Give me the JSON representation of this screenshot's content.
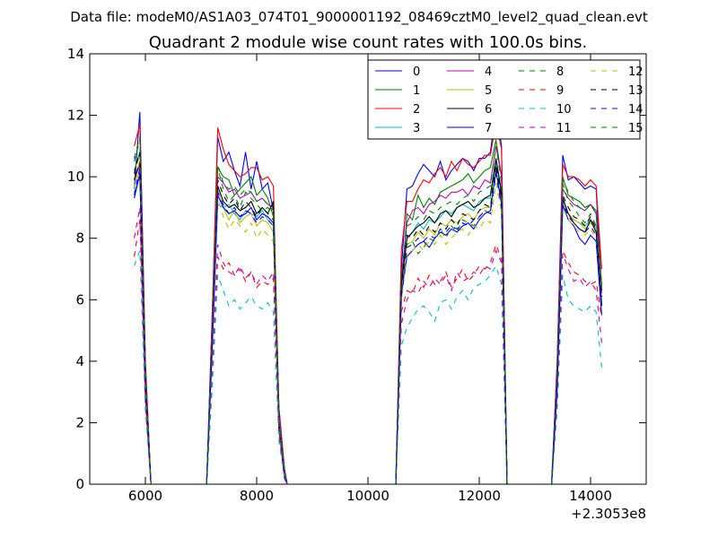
{
  "header": {
    "data_file": "Data file: modeM0/AS1A03_074T01_9000001192_08469cztM0_level2_quad_clean.evt"
  },
  "chart_data": {
    "type": "line",
    "title": "Quadrant 2 module wise count rates with 100.0s bins.",
    "xlabel": "",
    "ylabel": "",
    "xlim": [
      5000,
      15000
    ],
    "ylim": [
      0,
      14
    ],
    "x_offset_label": "+2.3053e8",
    "xticks": [
      6000,
      8000,
      10000,
      12000,
      14000
    ],
    "yticks": [
      0,
      2,
      4,
      6,
      8,
      10,
      12,
      14
    ],
    "grid": false,
    "legend": {
      "placement": "top-right",
      "columns": 4
    },
    "segments": [
      {
        "x": [
          5800,
          5900,
          6000,
          6100,
          6150
        ]
      },
      {
        "x": [
          7100,
          7200,
          7300,
          7400,
          7500,
          7600,
          7700,
          7800,
          7900,
          8000,
          8100,
          8200,
          8300,
          8400,
          8500,
          8550
        ]
      },
      {
        "x": [
          10500,
          10600,
          10700,
          10800,
          10900,
          11000,
          11100,
          11200,
          11300,
          11400,
          11500,
          11600,
          11700,
          11800,
          11900,
          12000,
          12100,
          12200,
          12300,
          12400,
          12500,
          12550
        ]
      },
      {
        "x": [
          13300,
          13400,
          13500,
          13600,
          13700,
          13800,
          13900,
          14000,
          14100,
          14200
        ]
      }
    ],
    "series": [
      {
        "name": "0",
        "color": "#0000ff",
        "dash": "solid",
        "values": [
          [
            9.6,
            12.1,
            4.0,
            0,
            0
          ],
          [
            0,
            5.5,
            11.3,
            10.5,
            10.8,
            10.2,
            9.7,
            10.8,
            9.6,
            10.5,
            9.6,
            9.8,
            8.9,
            2.5,
            0.5,
            0
          ],
          [
            0,
            7.0,
            9.6,
            9.7,
            10.1,
            10.4,
            10.2,
            10.0,
            10.5,
            9.9,
            10.2,
            10.4,
            10.6,
            10.5,
            10.2,
            10.6,
            10.6,
            10.8,
            12.2,
            11.0,
            0,
            0
          ],
          [
            0,
            4.0,
            10.7,
            9.9,
            10.0,
            9.8,
            9.6,
            9.7,
            9.6,
            6.3
          ]
        ]
      },
      {
        "name": "1",
        "color": "#008000",
        "dash": "solid",
        "values": [
          [
            10.2,
            10.8,
            3.2,
            0,
            0
          ],
          [
            0,
            4.6,
            10.3,
            10.0,
            9.9,
            9.4,
            9.6,
            9.8,
            10.0,
            9.4,
            9.6,
            9.3,
            8.7,
            2.0,
            0.3,
            0
          ],
          [
            0,
            6.2,
            8.8,
            8.6,
            9.4,
            9.0,
            9.3,
            9.1,
            9.5,
            9.6,
            9.7,
            9.8,
            9.9,
            10.1,
            9.8,
            10.0,
            10.2,
            10.3,
            11.2,
            10.0,
            0,
            0
          ],
          [
            0,
            3.2,
            10.0,
            9.4,
            9.3,
            9.2,
            9.0,
            9.1,
            8.9,
            6.5
          ]
        ]
      },
      {
        "name": "2",
        "color": "#ff0000",
        "dash": "solid",
        "values": [
          [
            11.0,
            11.7,
            3.9,
            0,
            0
          ],
          [
            0,
            5.4,
            11.6,
            10.9,
            10.4,
            10.2,
            10.0,
            10.1,
            10.3,
            10.3,
            9.9,
            10.0,
            9.7,
            2.4,
            0.4,
            0
          ],
          [
            0,
            7.6,
            9.2,
            9.2,
            9.6,
            9.9,
            9.8,
            10.1,
            10.3,
            10.0,
            10.5,
            10.2,
            10.6,
            10.4,
            10.3,
            10.5,
            10.7,
            10.7,
            11.8,
            10.9,
            0,
            0
          ],
          [
            0,
            3.9,
            10.4,
            10.0,
            10.0,
            9.9,
            9.7,
            9.9,
            9.7,
            7.0
          ]
        ]
      },
      {
        "name": "3",
        "color": "#00bfbf",
        "dash": "solid",
        "values": [
          [
            9.5,
            10.0,
            3.0,
            0,
            0
          ],
          [
            0,
            4.3,
            9.1,
            9.0,
            9.1,
            8.8,
            8.6,
            8.9,
            8.8,
            8.7,
            8.9,
            8.6,
            8.4,
            1.8,
            0.2,
            0
          ],
          [
            0,
            6.0,
            8.0,
            8.2,
            8.5,
            8.3,
            8.6,
            8.5,
            8.7,
            8.9,
            8.8,
            9.0,
            9.1,
            9.0,
            8.9,
            9.2,
            9.3,
            9.3,
            10.5,
            9.4,
            0,
            0
          ],
          [
            0,
            3.0,
            9.0,
            8.8,
            8.6,
            8.5,
            8.4,
            8.6,
            8.4,
            6.0
          ]
        ]
      },
      {
        "name": "4",
        "color": "#bf00bf",
        "dash": "solid",
        "values": [
          [
            9.9,
            10.4,
            3.2,
            0,
            0
          ],
          [
            0,
            4.8,
            10.0,
            9.8,
            9.5,
            9.6,
            9.3,
            9.4,
            9.5,
            9.2,
            9.3,
            9.1,
            9.0,
            2.0,
            0.3,
            0
          ],
          [
            0,
            6.6,
            8.5,
            8.9,
            9.0,
            8.8,
            9.1,
            9.2,
            9.4,
            9.3,
            9.5,
            9.5,
            9.6,
            9.4,
            9.7,
            9.6,
            9.9,
            9.8,
            11.0,
            10.0,
            0,
            0
          ],
          [
            0,
            3.4,
            9.6,
            9.3,
            9.1,
            9.0,
            8.9,
            9.1,
            8.8,
            6.2
          ]
        ]
      },
      {
        "name": "5",
        "color": "#bfbf00",
        "dash": "solid",
        "values": [
          [
            9.7,
            10.2,
            3.1,
            0,
            0
          ],
          [
            0,
            4.6,
            9.6,
            9.0,
            8.6,
            8.9,
            8.5,
            8.7,
            8.8,
            8.4,
            8.6,
            8.5,
            8.2,
            1.9,
            0.3,
            0
          ],
          [
            0,
            6.4,
            7.8,
            7.9,
            8.2,
            8.0,
            8.3,
            8.1,
            8.5,
            8.4,
            8.6,
            8.5,
            8.7,
            8.8,
            8.6,
            8.9,
            9.0,
            9.0,
            10.2,
            9.2,
            0,
            0
          ],
          [
            0,
            3.2,
            9.2,
            8.8,
            8.6,
            8.5,
            8.3,
            8.5,
            8.3,
            5.9
          ]
        ]
      },
      {
        "name": "6",
        "color": "#000000",
        "dash": "solid",
        "values": [
          [
            9.9,
            10.5,
            3.1,
            0,
            0
          ],
          [
            0,
            4.7,
            9.7,
            9.2,
            9.0,
            9.1,
            8.9,
            9.0,
            9.2,
            8.8,
            9.0,
            8.8,
            9.2,
            2.0,
            0.3,
            0
          ],
          [
            0,
            6.5,
            8.0,
            8.2,
            8.4,
            8.5,
            8.7,
            8.5,
            8.8,
            8.9,
            8.7,
            9.0,
            9.1,
            9.2,
            9.0,
            9.1,
            9.3,
            9.4,
            10.6,
            9.5,
            0,
            0
          ],
          [
            0,
            3.3,
            9.3,
            8.8,
            8.5,
            8.3,
            8.2,
            8.6,
            8.2,
            5.8
          ]
        ]
      },
      {
        "name": "7",
        "color": "#0000ff",
        "dash": "solid",
        "values": [
          [
            9.3,
            10.1,
            3.0,
            0,
            0
          ],
          [
            0,
            4.4,
            9.4,
            9.0,
            8.8,
            8.9,
            8.7,
            8.8,
            9.0,
            8.6,
            8.8,
            8.7,
            8.5,
            1.9,
            0.2,
            0
          ],
          [
            0,
            6.1,
            7.4,
            7.6,
            7.8,
            7.9,
            7.7,
            8.0,
            8.2,
            8.1,
            8.3,
            8.2,
            8.4,
            8.5,
            8.3,
            8.6,
            8.8,
            8.9,
            10.2,
            9.1,
            0,
            0
          ],
          [
            0,
            3.1,
            9.1,
            8.6,
            8.4,
            8.0,
            7.8,
            8.1,
            7.9,
            5.5
          ]
        ]
      },
      {
        "name": "8",
        "color": "#008000",
        "dash": "dashed",
        "values": [
          [
            10.5,
            11.2,
            3.5,
            0,
            0
          ],
          [
            0,
            5.0,
            10.3,
            9.6,
            9.2,
            9.4,
            9.0,
            9.5,
            9.3,
            9.1,
            8.9,
            9.0,
            8.8,
            2.1,
            0.3,
            0
          ],
          [
            0,
            6.7,
            7.8,
            7.9,
            7.5,
            7.7,
            8.0,
            7.9,
            8.3,
            8.0,
            8.4,
            8.2,
            8.6,
            8.5,
            8.4,
            8.7,
            8.9,
            8.8,
            10.3,
            9.3,
            0,
            0
          ],
          [
            0,
            3.5,
            9.8,
            9.2,
            9.0,
            8.7,
            8.5,
            8.8,
            8.4,
            6.1
          ]
        ]
      },
      {
        "name": "9",
        "color": "#ff0000",
        "dash": "dashed",
        "values": [
          [
            7.4,
            8.6,
            2.6,
            0,
            0
          ],
          [
            0,
            3.6,
            7.4,
            7.0,
            7.2,
            6.8,
            7.0,
            6.6,
            6.9,
            6.4,
            6.6,
            6.5,
            6.7,
            1.6,
            0.2,
            0
          ],
          [
            0,
            5.6,
            6.3,
            6.2,
            6.7,
            6.4,
            6.8,
            6.5,
            6.6,
            6.9,
            6.4,
            6.7,
            7.0,
            6.6,
            6.8,
            7.1,
            7.0,
            7.2,
            7.8,
            7.3,
            0,
            0
          ],
          [
            0,
            2.7,
            7.6,
            7.2,
            6.9,
            6.8,
            6.6,
            6.5,
            6.6,
            5.4
          ]
        ]
      },
      {
        "name": "10",
        "color": "#00bfbf",
        "dash": "dashed",
        "values": [
          [
            7.1,
            7.6,
            2.4,
            0,
            0
          ],
          [
            0,
            3.1,
            6.8,
            6.3,
            5.8,
            6.0,
            5.7,
            5.9,
            6.1,
            5.8,
            5.7,
            5.9,
            5.6,
            1.4,
            0.2,
            0
          ],
          [
            0,
            4.5,
            5.1,
            5.4,
            5.7,
            5.8,
            5.6,
            5.3,
            5.9,
            6.0,
            5.7,
            6.1,
            6.3,
            6.0,
            6.4,
            6.5,
            6.6,
            6.8,
            7.1,
            6.5,
            0,
            0
          ],
          [
            0,
            2.4,
            6.8,
            6.0,
            5.8,
            5.7,
            5.6,
            5.8,
            5.6,
            3.8
          ]
        ]
      },
      {
        "name": "11",
        "color": "#bf00bf",
        "dash": "dashed",
        "values": [
          [
            8.0,
            9.0,
            2.8,
            0,
            0
          ],
          [
            0,
            3.8,
            7.8,
            7.2,
            6.9,
            6.8,
            7.1,
            6.7,
            6.9,
            6.5,
            6.8,
            6.6,
            6.9,
            1.7,
            0.2,
            0
          ],
          [
            0,
            5.2,
            6.0,
            6.3,
            6.2,
            6.6,
            6.4,
            6.7,
            6.5,
            6.8,
            6.3,
            6.9,
            6.6,
            6.7,
            6.9,
            6.8,
            7.1,
            7.0,
            7.6,
            7.2,
            0,
            0
          ],
          [
            0,
            2.8,
            7.5,
            7.0,
            6.6,
            6.7,
            6.4,
            6.6,
            6.3,
            4.6
          ]
        ]
      },
      {
        "name": "12",
        "color": "#bfbf00",
        "dash": "dashed",
        "values": [
          [
            9.6,
            10.6,
            3.2,
            0,
            0
          ],
          [
            0,
            4.5,
            9.3,
            8.7,
            8.3,
            8.6,
            8.4,
            8.2,
            8.5,
            8.0,
            8.3,
            8.1,
            7.9,
            1.9,
            0.3,
            0
          ],
          [
            0,
            6.0,
            7.5,
            7.6,
            7.8,
            7.6,
            7.9,
            7.8,
            8.1,
            7.8,
            8.0,
            8.2,
            8.3,
            8.1,
            8.4,
            8.3,
            8.6,
            8.5,
            9.8,
            8.8,
            0,
            0
          ],
          [
            0,
            3.2,
            9.0,
            8.6,
            8.4,
            8.2,
            8.1,
            8.3,
            8.0,
            6.0
          ]
        ]
      },
      {
        "name": "13",
        "color": "#000000",
        "dash": "dashed",
        "values": [
          [
            10.1,
            10.8,
            3.4,
            0,
            0
          ],
          [
            0,
            4.9,
            9.9,
            9.4,
            9.1,
            9.3,
            8.9,
            9.2,
            9.0,
            8.7,
            9.0,
            8.8,
            8.6,
            2.0,
            0.3,
            0
          ],
          [
            0,
            6.5,
            8.1,
            8.0,
            8.3,
            8.1,
            8.4,
            8.2,
            8.5,
            8.3,
            8.6,
            8.4,
            8.8,
            8.7,
            8.6,
            8.9,
            9.1,
            9.0,
            10.4,
            9.3,
            0,
            0
          ],
          [
            0,
            3.4,
            9.4,
            9.0,
            8.7,
            8.6,
            8.4,
            8.7,
            8.3,
            6.1
          ]
        ]
      },
      {
        "name": "14",
        "color": "#0000ff",
        "dash": "dashed",
        "values": [
          [
            9.4,
            10.3,
            3.1,
            0,
            0
          ],
          [
            0,
            4.6,
            9.5,
            9.1,
            8.8,
            9.0,
            8.7,
            8.9,
            8.8,
            8.5,
            8.7,
            8.6,
            8.4,
            1.9,
            0.2,
            0
          ],
          [
            0,
            6.2,
            7.7,
            7.8,
            8.0,
            7.9,
            8.1,
            8.0,
            8.3,
            8.2,
            8.4,
            8.3,
            8.5,
            8.4,
            8.6,
            8.7,
            8.9,
            8.8,
            10.1,
            9.0,
            0,
            0
          ],
          [
            0,
            3.1,
            9.2,
            8.7,
            8.5,
            8.3,
            8.2,
            8.4,
            8.1,
            5.8
          ]
        ]
      },
      {
        "name": "15",
        "color": "#008000",
        "dash": "dashed",
        "values": [
          [
            10.6,
            11.3,
            3.6,
            0,
            0
          ],
          [
            0,
            5.1,
            10.4,
            9.8,
            9.6,
            9.7,
            9.4,
            9.6,
            9.5,
            9.2,
            9.3,
            9.1,
            8.9,
            2.1,
            0.3,
            0
          ],
          [
            0,
            6.8,
            8.4,
            8.5,
            8.7,
            8.6,
            8.9,
            8.8,
            9.0,
            9.1,
            9.2,
            9.1,
            9.3,
            9.4,
            9.2,
            9.5,
            9.6,
            9.7,
            11.0,
            9.8,
            0,
            0
          ],
          [
            0,
            3.6,
            9.9,
            9.5,
            9.2,
            9.0,
            8.9,
            9.1,
            8.8,
            6.4
          ]
        ]
      }
    ]
  }
}
